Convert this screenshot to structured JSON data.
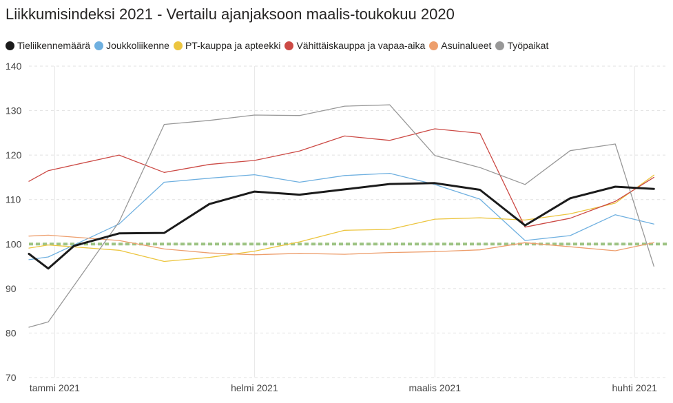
{
  "chart_data": {
    "type": "line",
    "title": "Liikkumisindeksi 2021 - Vertailu ajanjaksoon maalis-toukokuu 2020",
    "xlabel": "",
    "ylabel": "",
    "ylim": [
      70,
      140
    ],
    "yticks": [
      70,
      80,
      90,
      100,
      110,
      120,
      130,
      140
    ],
    "x_dates": [
      "2020-12-28",
      "2021-01-01",
      "2021-01-11",
      "2021-01-18",
      "2021-01-25",
      "2021-02-01",
      "2021-02-08",
      "2021-02-15",
      "2021-02-22",
      "2021-03-01",
      "2021-03-08",
      "2021-03-15",
      "2021-03-22",
      "2021-03-29",
      "2021-04-04"
    ],
    "x_range": [
      "2020-12-28",
      "2021-04-06"
    ],
    "x_ticks": [
      {
        "date": "2021-01-01",
        "label": "tammi 2021"
      },
      {
        "date": "2021-02-01",
        "label": "helmi 2021"
      },
      {
        "date": "2021-03-01",
        "label": "maalis 2021"
      },
      {
        "date": "2021-04-01",
        "label": "huhti 2021"
      }
    ],
    "grid": true,
    "legend_position": "top-left",
    "reference_line": {
      "y": 100,
      "color": "#9dc383"
    },
    "series": [
      {
        "name": "Tieliikennemäärä",
        "color": "#1b1b1b",
        "width": 3,
        "dates": [
          "2020-12-28",
          "2020-12-31",
          "2021-01-04",
          "2021-01-11",
          "2021-01-18",
          "2021-01-25",
          "2021-02-01",
          "2021-02-08",
          "2021-02-15",
          "2021-02-22",
          "2021-03-01",
          "2021-03-08",
          "2021-03-15",
          "2021-03-22",
          "2021-03-29",
          "2021-04-04"
        ],
        "values": [
          97.8,
          94.5,
          99.6,
          102.4,
          102.5,
          109.0,
          111.8,
          111.1,
          112.3,
          113.5,
          113.7,
          112.2,
          104.2,
          110.3,
          112.9,
          112.4
        ]
      },
      {
        "name": "Joukkoliikenne",
        "color": "#6fb0e0",
        "width": 1.3,
        "dates": [
          "2020-12-28",
          "2020-12-31",
          "2021-01-11",
          "2021-01-18",
          "2021-01-25",
          "2021-02-01",
          "2021-02-08",
          "2021-02-15",
          "2021-02-22",
          "2021-03-01",
          "2021-03-08",
          "2021-03-15",
          "2021-03-22",
          "2021-03-29",
          "2021-04-04"
        ],
        "values": [
          96.5,
          97.1,
          104.5,
          113.9,
          114.8,
          115.6,
          113.9,
          115.4,
          115.9,
          113.4,
          110.1,
          100.8,
          101.9,
          106.6,
          104.5
        ]
      },
      {
        "name": "PT-kauppa ja apteekki",
        "color": "#ecc53f",
        "width": 1.3,
        "dates": [
          "2020-12-28",
          "2020-12-31",
          "2021-01-11",
          "2021-01-18",
          "2021-01-25",
          "2021-02-01",
          "2021-02-08",
          "2021-02-15",
          "2021-02-22",
          "2021-03-01",
          "2021-03-08",
          "2021-03-15",
          "2021-03-22",
          "2021-03-29",
          "2021-04-04"
        ],
        "values": [
          99.1,
          99.8,
          98.6,
          96.1,
          97.0,
          98.4,
          100.5,
          103.1,
          103.3,
          105.6,
          105.9,
          105.4,
          106.8,
          109.2,
          115.5
        ]
      },
      {
        "name": "Vähittäiskauppa ja vapaa-aika",
        "color": "#cc4a45",
        "width": 1.3,
        "dates": [
          "2020-12-28",
          "2020-12-31",
          "2021-01-11",
          "2021-01-18",
          "2021-01-25",
          "2021-02-01",
          "2021-02-08",
          "2021-02-15",
          "2021-02-22",
          "2021-03-01",
          "2021-03-08",
          "2021-03-15",
          "2021-03-22",
          "2021-03-29",
          "2021-04-04"
        ],
        "values": [
          114.1,
          116.5,
          120.0,
          116.1,
          117.9,
          118.8,
          120.9,
          124.3,
          123.3,
          125.9,
          124.9,
          103.8,
          105.8,
          109.6,
          115.0
        ]
      },
      {
        "name": "Asuinalueet",
        "color": "#ed9e6c",
        "width": 1.3,
        "dates": [
          "2020-12-28",
          "2020-12-31",
          "2021-01-11",
          "2021-01-18",
          "2021-01-25",
          "2021-02-01",
          "2021-02-08",
          "2021-02-15",
          "2021-02-22",
          "2021-03-01",
          "2021-03-08",
          "2021-03-15",
          "2021-03-22",
          "2021-03-29",
          "2021-04-04"
        ],
        "values": [
          101.8,
          102.0,
          100.8,
          98.9,
          98.0,
          97.6,
          97.9,
          97.7,
          98.1,
          98.3,
          98.7,
          100.3,
          99.4,
          98.5,
          100.3
        ]
      },
      {
        "name": "Työpaikat",
        "color": "#989898",
        "width": 1.3,
        "dates": [
          "2020-12-28",
          "2020-12-31",
          "2021-01-11",
          "2021-01-18",
          "2021-01-25",
          "2021-02-01",
          "2021-02-08",
          "2021-02-15",
          "2021-02-22",
          "2021-03-01",
          "2021-03-08",
          "2021-03-15",
          "2021-03-22",
          "2021-03-29",
          "2021-04-04"
        ],
        "values": [
          81.3,
          82.5,
          105.0,
          126.9,
          127.8,
          129.0,
          128.9,
          131.0,
          131.3,
          119.9,
          117.2,
          113.4,
          121.0,
          122.5,
          95.0
        ]
      }
    ]
  }
}
